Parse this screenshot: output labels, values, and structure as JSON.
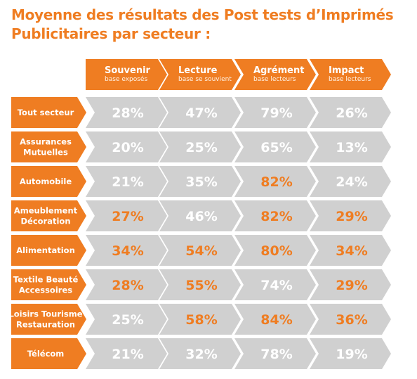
{
  "title": {
    "line1": "Moyenne des résultats des Post tests d’Imprimés",
    "line2": "Publicitaires par secteur :"
  },
  "colors": {
    "orange": "#ef7d22",
    "grey": "#d0d0d0",
    "value_white": "#ffffff",
    "value_orange": "#ef7d22"
  },
  "chart_data": {
    "type": "table",
    "title": "Moyenne des résultats des Post tests d’Imprimés Publicitaires par secteur :",
    "columns": [
      {
        "label": "Souvenir",
        "sublabel": "base exposés"
      },
      {
        "label": "Lecture",
        "sublabel": "base se souvient"
      },
      {
        "label": "Agrément",
        "sublabel": "base lecteurs"
      },
      {
        "label": "Impact",
        "sublabel": "base lecteurs"
      }
    ],
    "rows": [
      {
        "label": [
          "Tout secteur"
        ],
        "values": [
          "28%",
          "47%",
          "79%",
          "26%"
        ],
        "highlight": [
          false,
          false,
          false,
          false
        ]
      },
      {
        "label": [
          "Assurances",
          "Mutuelles"
        ],
        "values": [
          "20%",
          "25%",
          "65%",
          "13%"
        ],
        "highlight": [
          false,
          false,
          false,
          false
        ]
      },
      {
        "label": [
          "Automobile"
        ],
        "values": [
          "21%",
          "35%",
          "82%",
          "24%"
        ],
        "highlight": [
          false,
          false,
          true,
          false
        ]
      },
      {
        "label": [
          "Ameublement",
          "Décoration"
        ],
        "values": [
          "27%",
          "46%",
          "82%",
          "29%"
        ],
        "highlight": [
          true,
          false,
          true,
          true
        ]
      },
      {
        "label": [
          "Alimentation"
        ],
        "values": [
          "34%",
          "54%",
          "80%",
          "34%"
        ],
        "highlight": [
          true,
          true,
          true,
          true
        ]
      },
      {
        "label": [
          "Textile Beauté",
          "Accessoires"
        ],
        "values": [
          "28%",
          "55%",
          "74%",
          "29%"
        ],
        "highlight": [
          true,
          true,
          false,
          true
        ]
      },
      {
        "label": [
          "Loisirs Tourisme",
          "Restauration"
        ],
        "values": [
          "25%",
          "58%",
          "84%",
          "36%"
        ],
        "highlight": [
          false,
          true,
          true,
          true
        ]
      },
      {
        "label": [
          "Télécom"
        ],
        "values": [
          "21%",
          "32%",
          "78%",
          "19%"
        ],
        "highlight": [
          false,
          false,
          false,
          false
        ]
      }
    ]
  }
}
